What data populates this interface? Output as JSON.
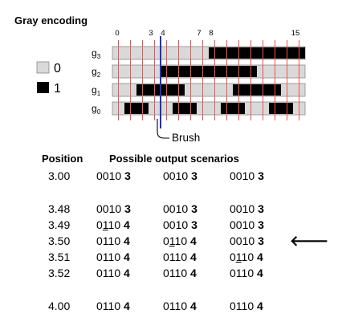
{
  "title": "Gray encoding",
  "tick_labels": [
    "0",
    "3",
    "4",
    "7",
    "8",
    "15"
  ],
  "legend": [
    {
      "label": "0",
      "fill": "#d9d9d9"
    },
    {
      "label": "1",
      "fill": "#000000"
    }
  ],
  "colors": {
    "track_fill": "#d9d9d9",
    "bit_on": "#000000",
    "grid_line": "#ff4d4d",
    "brush_line": "#1f2fc4"
  },
  "brush_label": "Brush",
  "brush_position": 3.5,
  "tracks": [
    {
      "name": "g",
      "sub": "3",
      "segments": [
        [
          7.5,
          15.5
        ]
      ]
    },
    {
      "name": "g",
      "sub": "2",
      "segments": [
        [
          3.5,
          11.5
        ]
      ]
    },
    {
      "name": "g",
      "sub": "1",
      "segments": [
        [
          1.5,
          5.5
        ],
        [
          9.5,
          13.5
        ]
      ]
    },
    {
      "name": "g",
      "sub": "0",
      "segments": [
        [
          0.5,
          2.5
        ],
        [
          4.5,
          6.5
        ],
        [
          8.5,
          10.5
        ],
        [
          12.5,
          14.5
        ]
      ]
    }
  ],
  "table": {
    "header_position": "Position",
    "header_scenarios": "Possible output scenarios",
    "arrow": "🡐",
    "rows": [
      {
        "pos": "3.00",
        "c1": [
          "0010",
          "3"
        ],
        "c2": [
          "0010",
          "3"
        ],
        "c3": [
          "0010",
          "3"
        ]
      },
      {
        "pos": "3.48",
        "c1": [
          "0010",
          "3"
        ],
        "c2": [
          "0010",
          "3"
        ],
        "c3": [
          "0010",
          "3"
        ]
      },
      {
        "pos": "3.49",
        "c1": [
          "0110",
          "4"
        ],
        "c2": [
          "0010",
          "3"
        ],
        "c3": [
          "0010",
          "3"
        ]
      },
      {
        "pos": "3.50",
        "c1": [
          "0110",
          "4"
        ],
        "c2": [
          "0110",
          "4"
        ],
        "c3": [
          "0010",
          "3"
        ]
      },
      {
        "pos": "3.51",
        "c1": [
          "0110",
          "4"
        ],
        "c2": [
          "0110",
          "4"
        ],
        "c3": [
          "0110",
          "4"
        ]
      },
      {
        "pos": "3.52",
        "c1": [
          "0110",
          "4"
        ],
        "c2": [
          "0110",
          "4"
        ],
        "c3": [
          "0110",
          "4"
        ]
      },
      {
        "pos": "4.00",
        "c1": [
          "0110",
          "4"
        ],
        "c2": [
          "0110",
          "4"
        ],
        "c3": [
          "0110",
          "4"
        ]
      }
    ]
  }
}
